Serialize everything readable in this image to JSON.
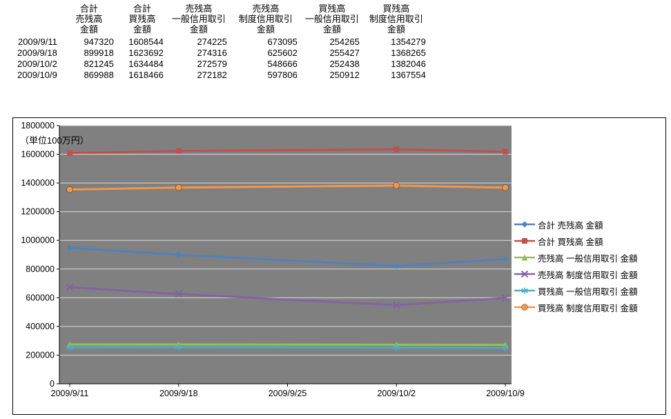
{
  "table": {
    "columns": [
      {
        "lines": [
          "合計",
          "売残高",
          "金額"
        ]
      },
      {
        "lines": [
          "合計",
          "買残高",
          "金額"
        ]
      },
      {
        "lines": [
          "売残高",
          "一般信用取引",
          "金額"
        ]
      },
      {
        "lines": [
          "売残高",
          "制度信用取引",
          "金額"
        ]
      },
      {
        "lines": [
          "買残高",
          "一般信用取引",
          "金額"
        ]
      },
      {
        "lines": [
          "買残高",
          "制度信用取引",
          "金額"
        ]
      }
    ],
    "rows": [
      {
        "date": "2009/9/11",
        "values": [
          947320,
          1608544,
          274225,
          673095,
          254265,
          1354279
        ]
      },
      {
        "date": "2009/9/18",
        "values": [
          899918,
          1623692,
          274316,
          625602,
          255427,
          1368265
        ]
      },
      {
        "date": "2009/10/2",
        "values": [
          821245,
          1634484,
          272579,
          548666,
          252438,
          1382046
        ]
      },
      {
        "date": "2009/10/9",
        "values": [
          869988,
          1618466,
          272182,
          597806,
          250912,
          1367554
        ]
      }
    ]
  },
  "chart_data": {
    "type": "line",
    "unit_label": "（単位100万円）",
    "x_tick_labels": [
      "2009/9/11",
      "2009/9/18",
      "2009/9/25",
      "2009/10/2",
      "2009/10/9"
    ],
    "x_data_positions": [
      0,
      1,
      3,
      4
    ],
    "y_tick_labels": [
      "0",
      "200000",
      "400000",
      "600000",
      "800000",
      "1000000",
      "1200000",
      "1400000",
      "1600000",
      "1800000"
    ],
    "ylim": [
      0,
      1800000
    ],
    "y_tick_step": 200000,
    "plot_bg": "#808080",
    "gridline_color": "#d9d9d9",
    "axis_color": "#000000",
    "legend_position": "right",
    "grid": true,
    "series": [
      {
        "name": "合計 売残高 金額",
        "color": "#4F81BD",
        "marker": "diamond",
        "values": [
          947320,
          899918,
          821245,
          869988
        ]
      },
      {
        "name": "合計 買残高 金額",
        "color": "#C0504D",
        "marker": "square",
        "values": [
          1608544,
          1623692,
          1634484,
          1618466
        ]
      },
      {
        "name": "売残高 一般信用取引 金額",
        "color": "#9BBB59",
        "marker": "triangle",
        "values": [
          274225,
          274316,
          272579,
          272182
        ]
      },
      {
        "name": "売残高 制度信用取引 金額",
        "color": "#8064A2",
        "marker": "x",
        "values": [
          673095,
          625602,
          548666,
          597806
        ]
      },
      {
        "name": "買残高 一般信用取引 金額",
        "color": "#4BACC6",
        "marker": "asterisk",
        "values": [
          254265,
          255427,
          252438,
          250912
        ]
      },
      {
        "name": "買残高 制度信用取引 金額",
        "color": "#F79646",
        "marker": "circle",
        "values": [
          1354279,
          1368265,
          1382046,
          1367554
        ]
      }
    ]
  }
}
